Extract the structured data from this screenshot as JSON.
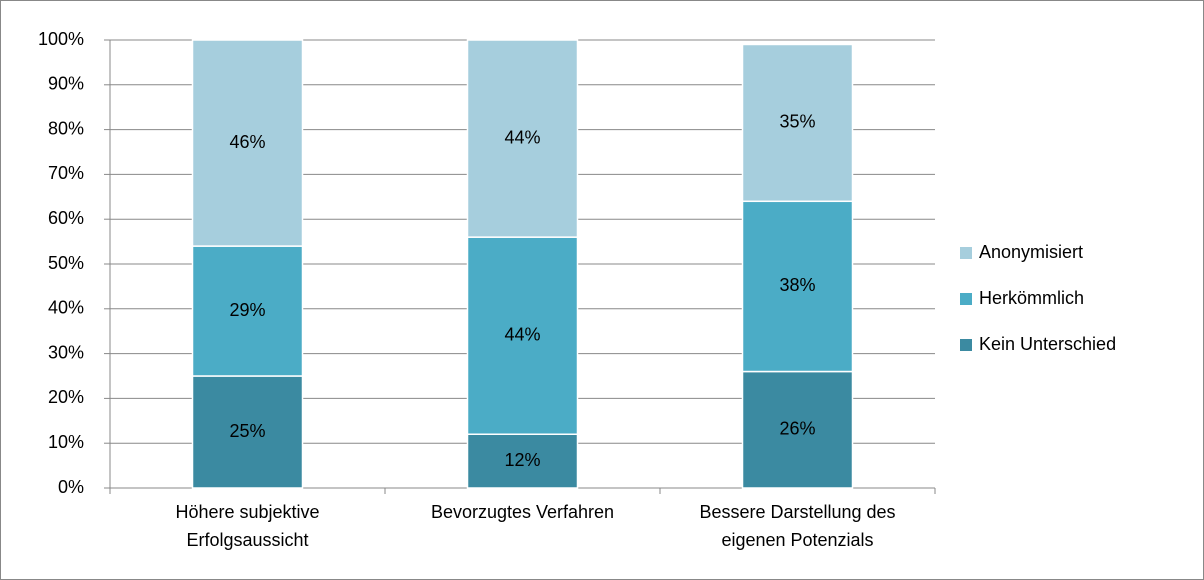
{
  "chart_data": {
    "type": "stacked_bar",
    "categories": [
      "Höhere subjektive Erfolgsaussicht",
      "Bevorzugtes Verfahren",
      "Bessere Darstellung des eigenen Potenzials"
    ],
    "series": [
      {
        "name": "Kein Unterschied",
        "color": "#3b8aa1",
        "values": [
          25,
          12,
          26
        ],
        "value_labels": [
          "25%",
          "12%",
          "26%"
        ]
      },
      {
        "name": "Herkömmlich",
        "color": "#4bacc6",
        "values": [
          29,
          44,
          38
        ],
        "value_labels": [
          "29%",
          "44%",
          "38%"
        ]
      },
      {
        "name": "Anonymisiert",
        "color": "#a6cedd",
        "values": [
          46,
          44,
          35
        ],
        "value_labels": [
          "46%",
          "44%",
          "35%"
        ]
      }
    ],
    "ylim": [
      0,
      100
    ],
    "yticks": [
      {
        "value": 0,
        "label": "0%"
      },
      {
        "value": 10,
        "label": "10%"
      },
      {
        "value": 20,
        "label": "20%"
      },
      {
        "value": 30,
        "label": "30%"
      },
      {
        "value": 40,
        "label": "40%"
      },
      {
        "value": 50,
        "label": "50%"
      },
      {
        "value": 60,
        "label": "60%"
      },
      {
        "value": 70,
        "label": "70%"
      },
      {
        "value": 80,
        "label": "80%"
      },
      {
        "value": 90,
        "label": "90%"
      },
      {
        "value": 100,
        "label": "100%"
      }
    ],
    "grid": true,
    "legend": "right"
  }
}
